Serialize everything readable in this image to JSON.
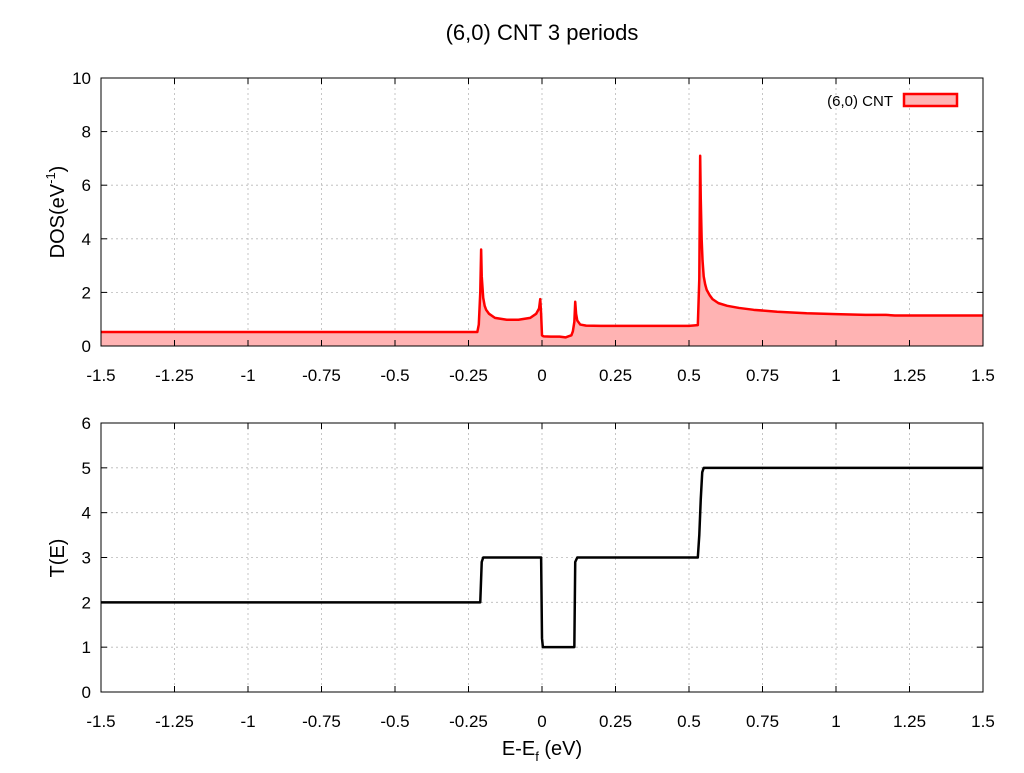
{
  "title": "(6,0) CNT 3 periods",
  "chart_data": [
    {
      "type": "area",
      "ylabel_main": "DOS(eV",
      "ylabel_sup": "-1",
      "ylabel_end": ")",
      "xlim": [
        -1.5,
        1.5
      ],
      "ylim": [
        0,
        10
      ],
      "xticks": [
        -1.5,
        -1.25,
        -1,
        -0.75,
        -0.5,
        -0.25,
        0,
        0.25,
        0.5,
        0.75,
        1,
        1.25,
        1.5
      ],
      "xtick_labels": [
        "-1.5",
        "-1.25",
        "-1",
        "-0.75",
        "-0.5",
        "-0.25",
        "0",
        "0.25",
        "0.5",
        "0.75",
        "1",
        "1.25",
        "1.5"
      ],
      "yticks": [
        0,
        2,
        4,
        6,
        8,
        10
      ],
      "ytick_labels": [
        "0",
        "2",
        "4",
        "6",
        "8",
        "10"
      ],
      "grid": true,
      "legend_position": "top-right",
      "series": [
        {
          "name": "(6,0) CNT",
          "color": "#ff0000",
          "fill": "#ffb3b3",
          "x": [
            -1.5,
            -0.22,
            -0.215,
            -0.21,
            -0.207,
            -0.205,
            -0.2,
            -0.195,
            -0.19,
            -0.18,
            -0.16,
            -0.12,
            -0.08,
            -0.04,
            -0.02,
            -0.01,
            -0.006,
            -0.003,
            0.0,
            0.003,
            0.006,
            0.03,
            0.06,
            0.08,
            0.09,
            0.1,
            0.105,
            0.11,
            0.113,
            0.116,
            0.12,
            0.13,
            0.15,
            0.2,
            0.3,
            0.4,
            0.5,
            0.53,
            0.535,
            0.538,
            0.54,
            0.543,
            0.546,
            0.55,
            0.555,
            0.56,
            0.57,
            0.58,
            0.6,
            0.63,
            0.67,
            0.72,
            0.8,
            0.9,
            1.0,
            1.1,
            1.17,
            1.2,
            1.3,
            1.4,
            1.5
          ],
          "values": [
            0.52,
            0.52,
            0.8,
            2.0,
            3.6,
            2.6,
            1.8,
            1.5,
            1.35,
            1.2,
            1.05,
            0.98,
            0.98,
            1.05,
            1.2,
            1.4,
            1.75,
            1.2,
            0.4,
            0.37,
            0.36,
            0.35,
            0.35,
            0.32,
            0.36,
            0.4,
            0.55,
            0.9,
            1.65,
            1.2,
            0.95,
            0.8,
            0.76,
            0.75,
            0.75,
            0.75,
            0.75,
            0.78,
            2.5,
            7.1,
            5.5,
            4.0,
            3.2,
            2.6,
            2.3,
            2.1,
            1.9,
            1.75,
            1.6,
            1.5,
            1.42,
            1.35,
            1.28,
            1.22,
            1.19,
            1.16,
            1.16,
            1.14,
            1.14,
            1.14,
            1.14
          ]
        }
      ]
    },
    {
      "type": "line",
      "ylabel": "T(E)",
      "xlabel_main": "E-E",
      "xlabel_sub": "f",
      "xlabel_end": " (eV)",
      "xlim": [
        -1.5,
        1.5
      ],
      "ylim": [
        0,
        6
      ],
      "xticks": [
        -1.5,
        -1.25,
        -1,
        -0.75,
        -0.5,
        -0.25,
        0,
        0.25,
        0.5,
        0.75,
        1,
        1.25,
        1.5
      ],
      "xtick_labels": [
        "-1.5",
        "-1.25",
        "-1",
        "-0.75",
        "-0.5",
        "-0.25",
        "0",
        "0.25",
        "0.5",
        "0.75",
        "1",
        "1.25",
        "1.5"
      ],
      "yticks": [
        0,
        1,
        2,
        3,
        4,
        5,
        6
      ],
      "ytick_labels": [
        "0",
        "1",
        "2",
        "3",
        "4",
        "5",
        "6"
      ],
      "grid": true,
      "series": [
        {
          "color": "#000000",
          "x": [
            -1.5,
            -0.21,
            -0.205,
            -0.2,
            -0.195,
            -0.003,
            0.0,
            0.003,
            0.05,
            0.11,
            0.113,
            0.12,
            0.53,
            0.535,
            0.54,
            0.545,
            0.55,
            1.5
          ],
          "values": [
            2,
            2,
            2.9,
            3,
            3,
            3,
            1.2,
            1,
            1,
            1,
            2.9,
            3,
            3,
            3.5,
            4.3,
            4.9,
            5,
            5
          ]
        }
      ]
    }
  ]
}
